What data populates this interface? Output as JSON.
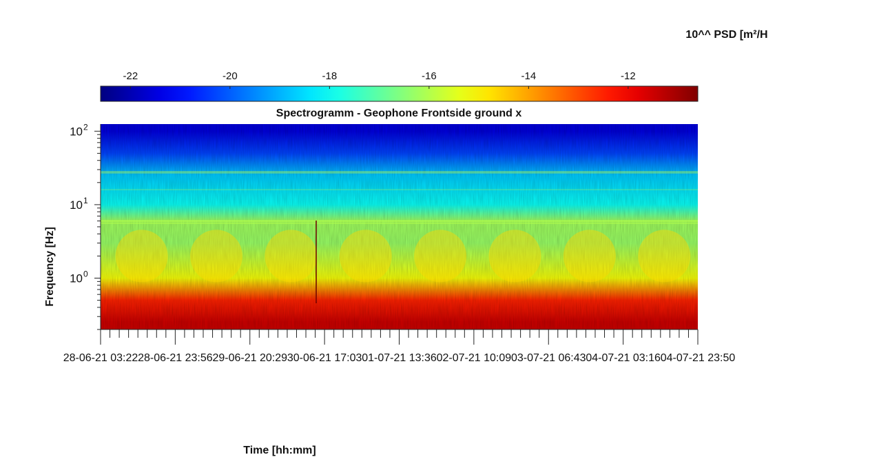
{
  "colorbar": {
    "label": "10^^ PSD [m²/H",
    "ticks": [
      -22,
      -20,
      -18,
      -16,
      -14,
      -12
    ],
    "tick_labels": [
      "-22",
      "-20",
      "-18",
      "-16",
      "-14",
      "-12"
    ],
    "range": [
      -22.6,
      -10.6
    ],
    "colormap": "jet",
    "colors": [
      "#00008f",
      "#0000ff",
      "#00ffff",
      "#ffff00",
      "#ff0000",
      "#800000"
    ]
  },
  "chart_data": {
    "type": "heatmap",
    "title": "Spectrogramm - Geophone Frontside ground x",
    "xlabel": "Time [hh:mm]",
    "ylabel": "Frequency [Hz]",
    "yscale": "log",
    "ylim": [
      0.2,
      125
    ],
    "y_tick_labels": [
      {
        "base": "10",
        "exp": "2",
        "value": 100
      },
      {
        "base": "10",
        "exp": "1",
        "value": 10
      },
      {
        "base": "10",
        "exp": "0",
        "value": 1
      }
    ],
    "x_tick_labels": [
      "28-06-21 03:22",
      "28-06-21 23:56",
      "29-06-21 20:29",
      "30-06-21 17:03",
      "01-07-21 13:36",
      "02-07-21 10:09",
      "03-07-21 06:43",
      "04-07-21 03:16",
      "04-07-21 23:50"
    ],
    "grid": false,
    "psd_log10_by_frequency": [
      {
        "frequency_hz": 100,
        "value": -21.5
      },
      {
        "frequency_hz": 50,
        "value": -20.3
      },
      {
        "frequency_hz": 25,
        "value": -18.7
      },
      {
        "frequency_hz": 10,
        "value": -18.0
      },
      {
        "frequency_hz": 6,
        "value": -16.2
      },
      {
        "frequency_hz": 3,
        "value": -16.3
      },
      {
        "frequency_hz": 1,
        "value": -15.2
      },
      {
        "frequency_hz": 0.5,
        "value": -12.5
      },
      {
        "frequency_hz": 0.25,
        "value": -11.5
      }
    ]
  }
}
